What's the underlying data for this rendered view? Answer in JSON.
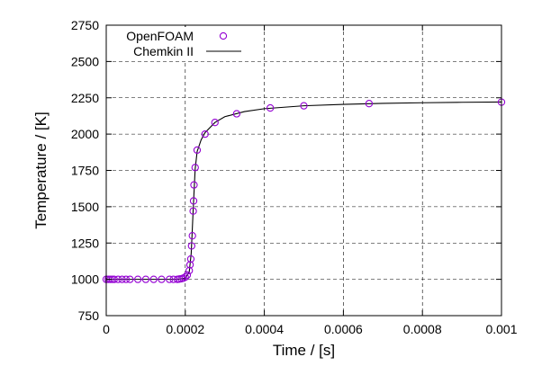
{
  "chart_data": {
    "type": "scatter",
    "title": "",
    "xlabel": "Time / [s]",
    "ylabel": "Temperature / [K]",
    "xlim": [
      0,
      0.001
    ],
    "ylim": [
      750,
      2750
    ],
    "x_ticks": [
      0,
      0.0002,
      0.0004,
      0.0006,
      0.0008,
      0.001
    ],
    "x_tick_labels": [
      "0",
      "0.0002",
      "0.0004",
      "0.0006",
      "0.0008",
      "0.001"
    ],
    "y_ticks": [
      750,
      1000,
      1250,
      1500,
      1750,
      2000,
      2250,
      2500,
      2750
    ],
    "y_tick_labels": [
      "750",
      "1000",
      "1250",
      "1500",
      "1750",
      "2000",
      "2250",
      "2500",
      "2750"
    ],
    "grid": true,
    "legend_position": "top-left",
    "series": [
      {
        "name": "OpenFOAM",
        "kind": "points",
        "marker": "open-circle",
        "color": "#9400d3",
        "points": [
          [
            0.0,
            1000
          ],
          [
            5e-06,
            1000
          ],
          [
            1e-05,
            1000
          ],
          [
            1.5e-05,
            1000
          ],
          [
            2e-05,
            1000
          ],
          [
            3e-05,
            1000
          ],
          [
            4e-05,
            1000
          ],
          [
            5e-05,
            1000
          ],
          [
            6e-05,
            1000
          ],
          [
            8e-05,
            1000
          ],
          [
            0.0001,
            1000
          ],
          [
            0.00012,
            1000
          ],
          [
            0.00014,
            1000
          ],
          [
            0.00016,
            1000
          ],
          [
            0.00017,
            1000
          ],
          [
            0.00018,
            1000
          ],
          [
            0.000185,
            1002
          ],
          [
            0.00019,
            1004
          ],
          [
            0.000195,
            1008
          ],
          [
            0.0002,
            1015
          ],
          [
            0.000205,
            1030
          ],
          [
            0.00021,
            1060
          ],
          [
            0.000212,
            1100
          ],
          [
            0.000214,
            1140
          ],
          [
            0.000216,
            1230
          ],
          [
            0.000218,
            1300
          ],
          [
            0.00022,
            1470
          ],
          [
            0.000221,
            1540
          ],
          [
            0.000222,
            1650
          ],
          [
            0.000225,
            1770
          ],
          [
            0.00023,
            1890
          ],
          [
            0.00025,
            2000
          ],
          [
            0.000275,
            2080
          ],
          [
            0.00033,
            2140
          ],
          [
            0.000415,
            2180
          ],
          [
            0.0005,
            2195
          ],
          [
            0.000665,
            2210
          ],
          [
            0.001,
            2220
          ]
        ]
      },
      {
        "name": "Chemkin II",
        "kind": "line",
        "color": "#000000",
        "points": [
          [
            0.0,
            1000
          ],
          [
            0.00018,
            1000
          ],
          [
            0.0002,
            1008
          ],
          [
            0.00021,
            1050
          ],
          [
            0.000215,
            1180
          ],
          [
            0.00022,
            1480
          ],
          [
            0.000225,
            1760
          ],
          [
            0.00023,
            1880
          ],
          [
            0.00024,
            1960
          ],
          [
            0.00025,
            2010
          ],
          [
            0.000275,
            2080
          ],
          [
            0.0003,
            2120
          ],
          [
            0.00035,
            2155
          ],
          [
            0.0004,
            2175
          ],
          [
            0.0005,
            2195
          ],
          [
            0.0006,
            2205
          ],
          [
            0.0007,
            2212
          ],
          [
            0.0008,
            2216
          ],
          [
            0.0009,
            2219
          ],
          [
            0.001,
            2221
          ]
        ]
      }
    ]
  }
}
